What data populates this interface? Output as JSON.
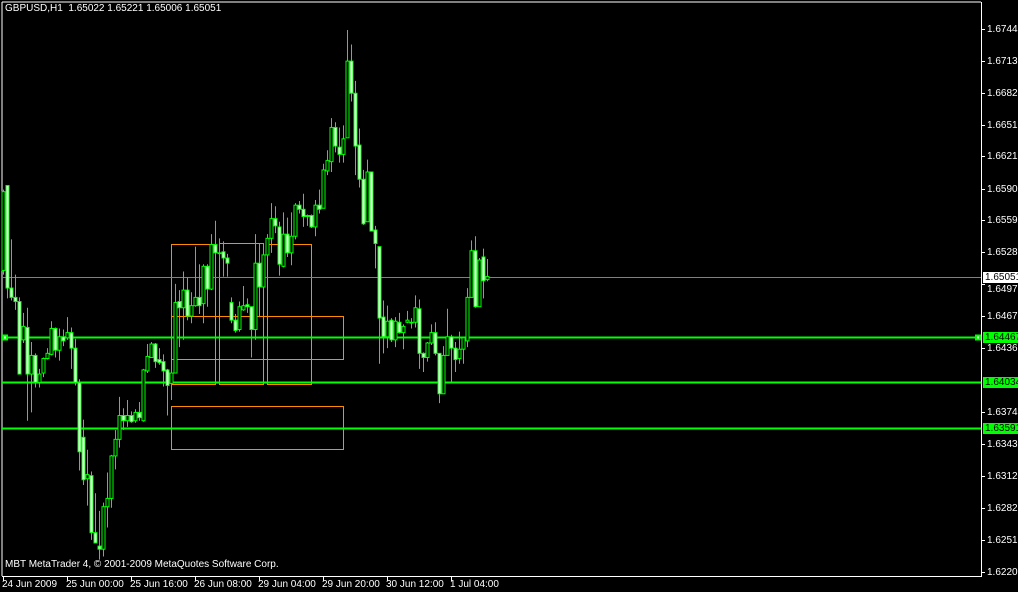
{
  "window": {
    "title": "GBPUSD,H1  1.65022 1.65221 1.65006 1.65051",
    "copyright": "MBT MetaTrader 4, © 2001-2009 MetaQuotes Software Corp."
  },
  "colors": {
    "background": "#000000",
    "candle": "#00ff00",
    "bear_body": "#ffffff",
    "bull_body": "#000000",
    "level_line": "#00ff00",
    "bid_line": "#808080",
    "rectangle": "#ff8c00",
    "axis": "#ffffff"
  },
  "chart_data": {
    "type": "candlestick",
    "symbol": "GBPUSD",
    "timeframe": "H1",
    "ylim": [
      1.622,
      1.6744
    ],
    "y_ticks": [
      "1.67440",
      "1.67135",
      "1.66825",
      "1.66515",
      "1.66210",
      "1.65900",
      "1.65595",
      "1.65285",
      "1.64975",
      "1.64670",
      "1.64360",
      "1.63745",
      "1.63435",
      "1.63125",
      "1.62820",
      "1.62510",
      "1.62200"
    ],
    "x_ticks": [
      "24 Jun 2009",
      "25 Jun 00:00",
      "25 Jun 16:00",
      "26 Jun 08:00",
      "29 Jun 04:00",
      "29 Jun 20:00",
      "30 Jun 12:00",
      "1 Jul 04:00"
    ],
    "bid": {
      "value": 1.65051,
      "label": "1.65051"
    },
    "levels": [
      {
        "value": 1.64467,
        "label": "1.64467"
      },
      {
        "value": 1.64034,
        "label": "1.64034"
      },
      {
        "value": 1.63591,
        "label": "1.63591"
      }
    ],
    "last_bar": {
      "open": "1.65022",
      "high": "1.65221",
      "low": "1.65006",
      "close": "1.65051"
    },
    "ohlc": [
      [
        1.6511,
        1.6589,
        1.6507,
        1.6587
      ],
      [
        1.6593,
        1.6593,
        1.6484,
        1.6494
      ],
      [
        1.6494,
        1.6541,
        1.6482,
        1.6485
      ],
      [
        1.6485,
        1.6507,
        1.6473,
        1.6481
      ],
      [
        1.6481,
        1.6485,
        1.6411,
        1.6411
      ],
      [
        1.6444,
        1.647,
        1.6441,
        1.6457
      ],
      [
        1.6456,
        1.6475,
        1.6366,
        1.6411
      ],
      [
        1.6411,
        1.6442,
        1.6374,
        1.6429
      ],
      [
        1.6429,
        1.6431,
        1.6398,
        1.6403
      ],
      [
        1.6403,
        1.6416,
        1.6398,
        1.6411
      ],
      [
        1.6412,
        1.6427,
        1.6408,
        1.6426
      ],
      [
        1.6426,
        1.6436,
        1.6425,
        1.6431
      ],
      [
        1.643,
        1.6462,
        1.6429,
        1.6455
      ],
      [
        1.6455,
        1.6456,
        1.6427,
        1.6434
      ],
      [
        1.6434,
        1.6455,
        1.6424,
        1.6447
      ],
      [
        1.6447,
        1.6454,
        1.6438,
        1.6443
      ],
      [
        1.6446,
        1.6466,
        1.6444,
        1.6451
      ],
      [
        1.6451,
        1.6456,
        1.6416,
        1.6436
      ],
      [
        1.6436,
        1.6445,
        1.64,
        1.6403
      ],
      [
        1.6403,
        1.6406,
        1.6318,
        1.6336
      ],
      [
        1.635,
        1.6367,
        1.6304,
        1.6309
      ],
      [
        1.631,
        1.6338,
        1.6284,
        1.6314
      ],
      [
        1.6313,
        1.6317,
        1.6251,
        1.6258
      ],
      [
        1.6258,
        1.6296,
        1.6248,
        1.6248
      ],
      [
        1.6245,
        1.6279,
        1.6232,
        1.6242
      ],
      [
        1.6242,
        1.6287,
        1.6235,
        1.6283
      ],
      [
        1.6283,
        1.6316,
        1.6263,
        1.6291
      ],
      [
        1.6291,
        1.6333,
        1.6282,
        1.6332
      ],
      [
        1.6332,
        1.6357,
        1.6319,
        1.6348
      ],
      [
        1.6348,
        1.6389,
        1.634,
        1.6371
      ],
      [
        1.6371,
        1.6378,
        1.6357,
        1.6366
      ],
      [
        1.6366,
        1.6386,
        1.636,
        1.6371
      ],
      [
        1.6371,
        1.6375,
        1.6364,
        1.6365
      ],
      [
        1.6366,
        1.6377,
        1.6364,
        1.6374
      ],
      [
        1.6374,
        1.6384,
        1.6366,
        1.6369
      ],
      [
        1.6366,
        1.6416,
        1.6365,
        1.6415
      ],
      [
        1.6414,
        1.644,
        1.6412,
        1.6428
      ],
      [
        1.6427,
        1.6442,
        1.6427,
        1.644
      ],
      [
        1.644,
        1.6441,
        1.6417,
        1.6423
      ],
      [
        1.6425,
        1.6436,
        1.642,
        1.6422
      ],
      [
        1.6423,
        1.643,
        1.6399,
        1.6414
      ],
      [
        1.6415,
        1.6416,
        1.6371,
        1.64
      ],
      [
        1.6402,
        1.6415,
        1.6386,
        1.6412
      ],
      [
        1.6412,
        1.6498,
        1.6412,
        1.648
      ],
      [
        1.6481,
        1.6492,
        1.6437,
        1.6475
      ],
      [
        1.6475,
        1.651,
        1.6444,
        1.6492
      ],
      [
        1.6492,
        1.6504,
        1.6463,
        1.6467
      ],
      [
        1.6467,
        1.649,
        1.646,
        1.6477
      ],
      [
        1.6477,
        1.6534,
        1.6476,
        1.6485
      ],
      [
        1.6485,
        1.6517,
        1.6469,
        1.6477
      ],
      [
        1.6479,
        1.6517,
        1.646,
        1.6515
      ],
      [
        1.6515,
        1.6517,
        1.6476,
        1.6493
      ],
      [
        1.6493,
        1.6546,
        1.6492,
        1.6536
      ],
      [
        1.6536,
        1.6559,
        1.6527,
        1.6528
      ],
      [
        1.6528,
        1.6542,
        1.6523,
        1.6528
      ],
      [
        1.6529,
        1.6539,
        1.6505,
        1.6523
      ],
      [
        1.6523,
        1.6527,
        1.6505,
        1.6518
      ],
      [
        1.648,
        1.6485,
        1.646,
        1.6463
      ],
      [
        1.6463,
        1.6469,
        1.6451,
        1.6453
      ],
      [
        1.6454,
        1.6481,
        1.6452,
        1.6476
      ],
      [
        1.6473,
        1.6496,
        1.6472,
        1.6477
      ],
      [
        1.6478,
        1.6484,
        1.647,
        1.6476
      ],
      [
        1.6476,
        1.6476,
        1.6427,
        1.6454
      ],
      [
        1.6454,
        1.6546,
        1.6444,
        1.6518
      ],
      [
        1.6518,
        1.6537,
        1.6466,
        1.6495
      ],
      [
        1.6495,
        1.6526,
        1.6492,
        1.6526
      ],
      [
        1.6526,
        1.6546,
        1.6524,
        1.6542
      ],
      [
        1.6542,
        1.6576,
        1.6528,
        1.6561
      ],
      [
        1.6561,
        1.6573,
        1.6547,
        1.6554
      ],
      [
        1.6553,
        1.6558,
        1.6506,
        1.6517
      ],
      [
        1.6515,
        1.6567,
        1.6514,
        1.6546
      ],
      [
        1.6546,
        1.6562,
        1.6524,
        1.6528
      ],
      [
        1.6528,
        1.6567,
        1.6516,
        1.6544
      ],
      [
        1.6544,
        1.6576,
        1.6541,
        1.6574
      ],
      [
        1.6574,
        1.6578,
        1.6566,
        1.657
      ],
      [
        1.657,
        1.6585,
        1.6553,
        1.6563
      ],
      [
        1.6564,
        1.6565,
        1.6554,
        1.6563
      ],
      [
        1.6564,
        1.6565,
        1.6552,
        1.6553
      ],
      [
        1.6553,
        1.6579,
        1.6544,
        1.6574
      ],
      [
        1.6574,
        1.6589,
        1.6566,
        1.657
      ],
      [
        1.6571,
        1.6614,
        1.6571,
        1.6608
      ],
      [
        1.6607,
        1.6627,
        1.6603,
        1.6617
      ],
      [
        1.6616,
        1.6658,
        1.6606,
        1.6649
      ],
      [
        1.6649,
        1.6654,
        1.6625,
        1.6631
      ],
      [
        1.663,
        1.6649,
        1.6615,
        1.6623
      ],
      [
        1.6623,
        1.6651,
        1.6615,
        1.6638
      ],
      [
        1.6639,
        1.6743,
        1.6639,
        1.6713
      ],
      [
        1.6713,
        1.6729,
        1.6674,
        1.6682
      ],
      [
        1.6682,
        1.6694,
        1.6603,
        1.6631
      ],
      [
        1.6632,
        1.6648,
        1.6591,
        1.6599
      ],
      [
        1.6599,
        1.6608,
        1.6555,
        1.6556
      ],
      [
        1.6558,
        1.6618,
        1.6558,
        1.6606
      ],
      [
        1.6606,
        1.6606,
        1.6549,
        1.6549
      ],
      [
        1.655,
        1.6554,
        1.6513,
        1.6537
      ],
      [
        1.6534,
        1.6534,
        1.6421,
        1.6465
      ],
      [
        1.6466,
        1.6482,
        1.6431,
        1.6447
      ],
      [
        1.6447,
        1.6477,
        1.6436,
        1.6462
      ],
      [
        1.6463,
        1.6465,
        1.6442,
        1.6444
      ],
      [
        1.6444,
        1.6466,
        1.6437,
        1.6462
      ],
      [
        1.6461,
        1.647,
        1.645,
        1.6451
      ],
      [
        1.6451,
        1.6459,
        1.6435,
        1.6457
      ],
      [
        1.6461,
        1.6472,
        1.646,
        1.6463
      ],
      [
        1.6461,
        1.6465,
        1.6455,
        1.6461
      ],
      [
        1.6461,
        1.6487,
        1.6456,
        1.6475
      ],
      [
        1.6474,
        1.6483,
        1.6416,
        1.6431
      ],
      [
        1.6431,
        1.6432,
        1.6413,
        1.6427
      ],
      [
        1.6427,
        1.6442,
        1.6423,
        1.6441
      ],
      [
        1.6441,
        1.6459,
        1.6439,
        1.6451
      ],
      [
        1.6451,
        1.6461,
        1.6429,
        1.6431
      ],
      [
        1.6431,
        1.6431,
        1.6383,
        1.6392
      ],
      [
        1.6392,
        1.6438,
        1.6392,
        1.6429
      ],
      [
        1.6429,
        1.6474,
        1.6429,
        1.6447
      ],
      [
        1.6447,
        1.6449,
        1.6403,
        1.6436
      ],
      [
        1.6436,
        1.6442,
        1.6413,
        1.6425
      ],
      [
        1.6426,
        1.6452,
        1.6421,
        1.6435
      ],
      [
        1.6435,
        1.6446,
        1.6421,
        1.6446
      ],
      [
        1.6443,
        1.6494,
        1.6437,
        1.6485
      ],
      [
        1.6485,
        1.654,
        1.6485,
        1.653
      ],
      [
        1.653,
        1.6544,
        1.6475,
        1.6476
      ],
      [
        1.6476,
        1.6523,
        1.6476,
        1.6521
      ],
      [
        1.6524,
        1.6532,
        1.6484,
        1.6501
      ],
      [
        1.65022,
        1.65221,
        1.65006,
        1.65051
      ]
    ]
  }
}
